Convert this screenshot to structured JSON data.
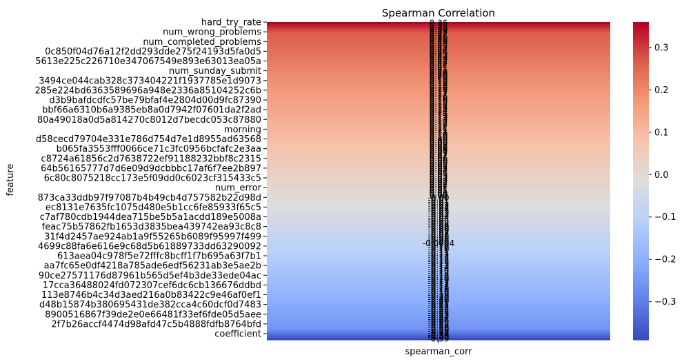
{
  "chart_data": {
    "type": "heatmap",
    "title": "Spearman Correlation",
    "xlabel": "",
    "ylabel": "feature",
    "x_categories": [
      "spearman_corr"
    ],
    "y_tick_labels": [
      "hard_try_rate",
      "num_wrong_problems",
      "num_completed_problems",
      "0c850f04d76a12f2dd293dde275f24193d5fa0d5",
      "5613e225c226710e347067549e893e63013ea05a",
      "num_sunday_submit",
      "3494ce044cab328c373404221f1937785e1d9073",
      "285e224bd6363589696a948e2336a85104252c6b",
      "d3b9bafdcdfc57be79bfaf4e2804d00d9fc87390",
      "bbf66a6310b6a9385eb8a0d7942f07601da2f2ad",
      "80a49018a0d5a814270c8012d7becdc053c87880",
      "morning",
      "d58cecd79704e331e786d754d7e1d8955ad63568",
      "b065fa3553fff0066ce71c3fc0956bcfafc2e3aa",
      "c8724a61856c2d7638722ef91188232bbf8c2315",
      "64b56165777d7d6e09d9dcbbbc17af6f7ee2b897",
      "6c80c8075218cc173e5f09dd0c6023cf315433c5",
      "num_error",
      "873ca33ddb97f97087b4b49cb4d757582b22d98d",
      "ec8131e7635fc1075d480e5b1cc6fe85933f65c5",
      "c7af780cdb1944dea715be5b5a1acdd189e5008a",
      "feac75b57862fb1653d3835bea439742ea93c8c8",
      "31f4d2457ae924ab1a9f55265b6089f95997f499",
      "4699c88fa6e616e9c68d5b61889733dd63290092",
      "613aea04c978f5e72fffc8bcff1f7b695a63f7b1",
      "aa7fc65e0df4218a785ade6edf56231ab3e5ae2b",
      "90ce27571176d87961b565d5ef4b3de33ede04ac",
      "17cca36488024fd072307cef6dc6cb136676ddbd",
      "113e8746b4c34d3aed216a0b83422c9e46af0ef1",
      "d48b15874b380695431de382cca4c60dcf0d7483",
      "8900516867f39de2e0e66481f33ef6fde05d5aee",
      "2f7b26accf4474d98afd47c5b4888fdfb8764bfd",
      "coefficient"
    ],
    "value_range": [
      -0.39,
      0.36
    ],
    "first_value": 0.36,
    "last_value": -0.39,
    "bottom_annotation": "-0.39",
    "zero_crossing_annotation": "-0.0004",
    "colormap": "coolwarm",
    "colorbar_ticks": [
      0.3,
      0.2,
      0.1,
      0.0,
      -0.1,
      -0.2,
      -0.3
    ],
    "colorbar_tick_labels": [
      "0.3",
      "0.2",
      "0.1",
      "0.0",
      "−0.1",
      "−0.2",
      "−0.3"
    ],
    "colorbar_range": [
      -0.39,
      0.36
    ]
  }
}
